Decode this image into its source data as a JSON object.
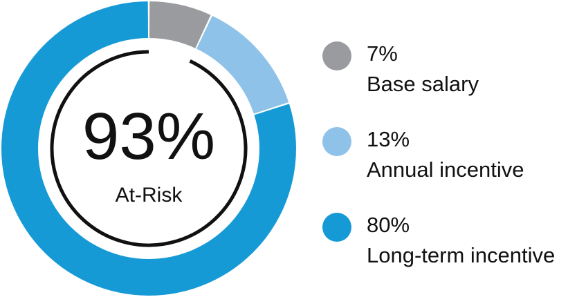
{
  "chart_data": {
    "type": "pie",
    "center": {
      "value": "93%",
      "label": "At-Risk"
    },
    "slices": [
      {
        "display": "7%",
        "label": "Base salary",
        "value": 7,
        "color": "#9a9b9e"
      },
      {
        "display": "13%",
        "label": "Annual incentive",
        "value": 13,
        "color": "#8ec2e8"
      },
      {
        "display": "80%",
        "label": "Long-term incentive",
        "value": 80,
        "color": "#169ad6"
      }
    ],
    "legend_position": "right"
  }
}
